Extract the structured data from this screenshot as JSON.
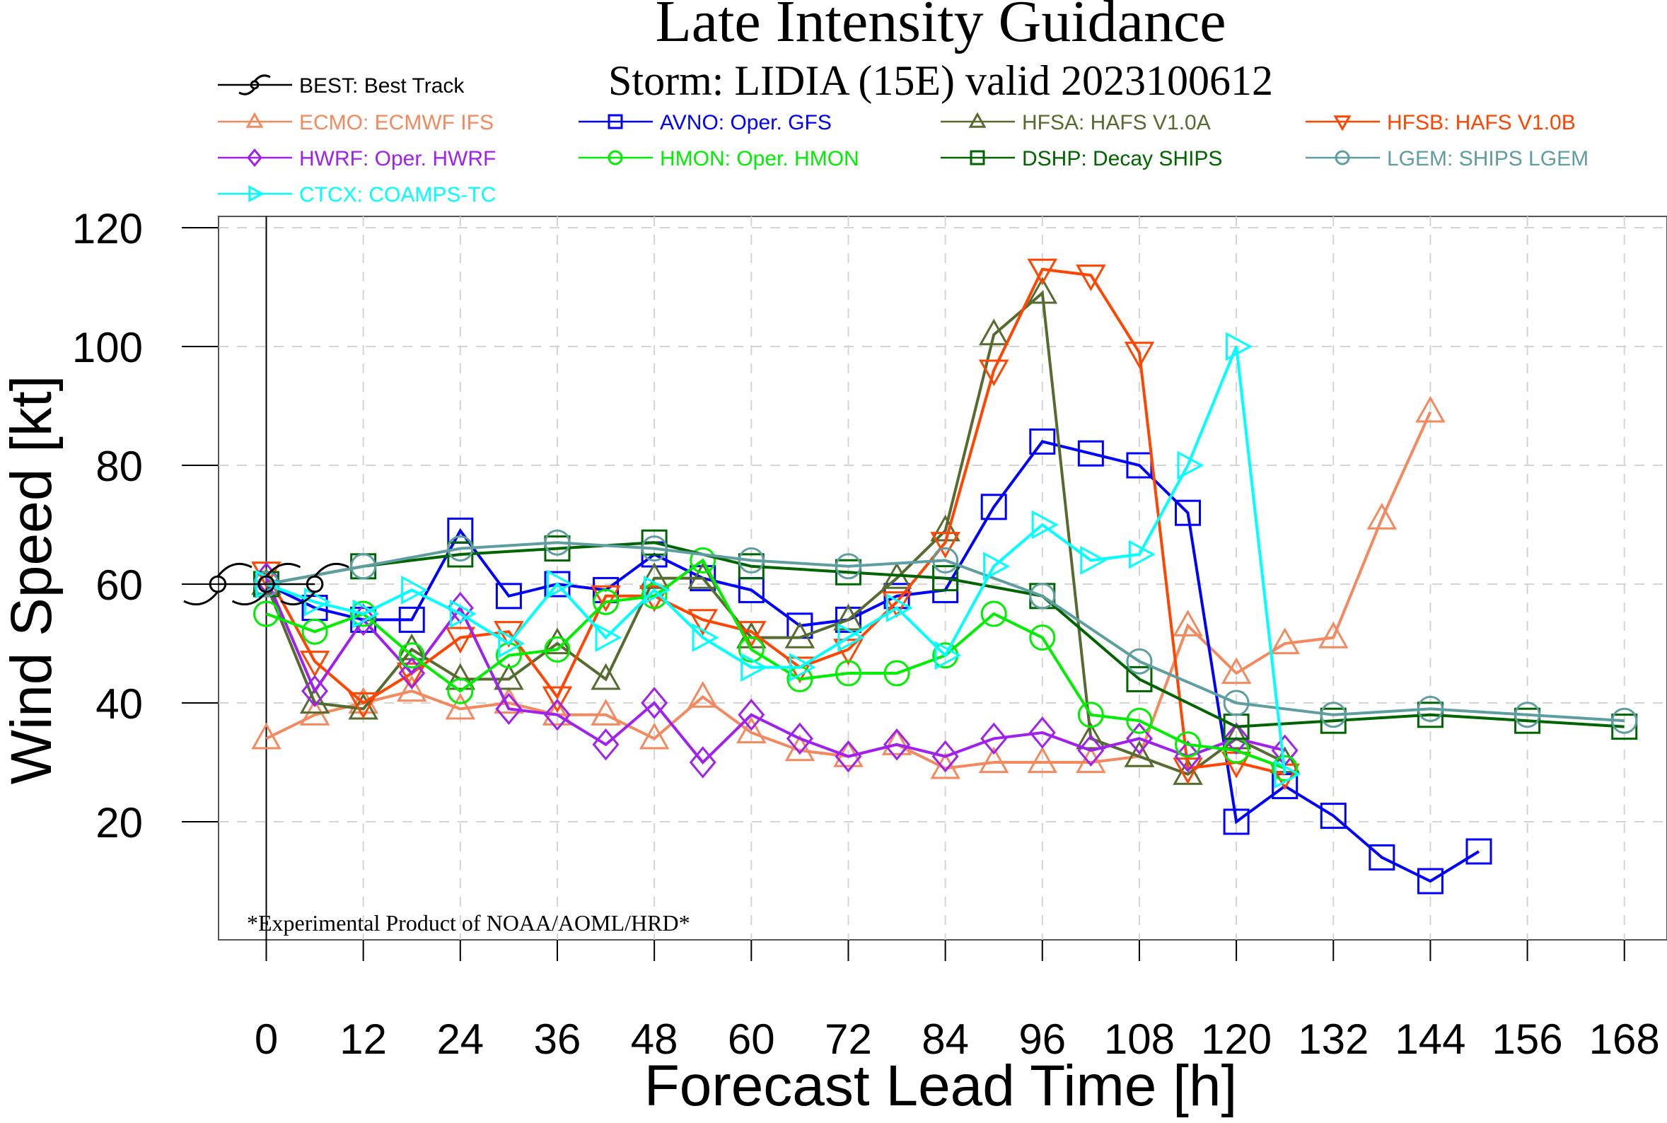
{
  "chart_data": {
    "type": "line",
    "title": "Late Intensity Guidance",
    "subtitle": "Storm: LIDIA (15E) valid 2023100612",
    "xlabel": "Forecast Lead Time [h]",
    "ylabel": "Wind Speed [kt]",
    "footnote": "*Experimental Product of NOAA/AOML/HRD*",
    "xlim": [
      -6,
      174
    ],
    "ylim": [
      0,
      122
    ],
    "x_ticks": [
      "0",
      "12",
      "24",
      "36",
      "48",
      "60",
      "72",
      "84",
      "96",
      "108",
      "120",
      "132",
      "144",
      "156",
      "168"
    ],
    "y_ticks": [
      "20",
      "40",
      "60",
      "80",
      "100",
      "120"
    ],
    "grid": true,
    "legend_position": "top",
    "vertical_reference_line_x": 0,
    "series": [
      {
        "name": "BEST: Best Track",
        "color": "#000000",
        "marker": "hurricane-symbol",
        "x": [
          -6,
          0,
          6
        ],
        "y": [
          60,
          60,
          60
        ]
      },
      {
        "name": "ECMO: ECMWF IFS",
        "color": "#f4895f",
        "marker": "triangle-up",
        "x": [
          0,
          6,
          12,
          18,
          24,
          30,
          36,
          42,
          48,
          54,
          60,
          66,
          72,
          78,
          84,
          90,
          96,
          102,
          108,
          114,
          120,
          126,
          132,
          138,
          144
        ],
        "y": [
          34,
          38,
          40,
          42,
          39,
          40,
          38,
          38,
          34,
          41,
          35,
          32,
          31,
          33,
          29,
          30,
          30,
          30,
          31,
          53,
          45,
          50,
          51,
          71,
          89
        ]
      },
      {
        "name": "AVNO: Oper. GFS",
        "color": "#0000ff",
        "marker": "square",
        "x": [
          0,
          6,
          12,
          18,
          24,
          30,
          36,
          42,
          48,
          54,
          60,
          66,
          72,
          78,
          84,
          90,
          96,
          102,
          108,
          114,
          120,
          126,
          132,
          138,
          144,
          150
        ],
        "y": [
          60,
          56,
          54,
          54,
          69,
          58,
          60,
          59,
          65,
          61,
          59,
          53,
          54,
          58,
          59,
          73,
          84,
          82,
          80,
          72,
          20,
          26,
          21,
          14,
          10,
          15
        ]
      },
      {
        "name": "HFSA: HAFS V1.0A",
        "color": "#556b2f",
        "marker": "triangle-up",
        "x": [
          0,
          6,
          12,
          18,
          24,
          30,
          36,
          42,
          48,
          54,
          60,
          66,
          72,
          78,
          84,
          90,
          96,
          102,
          108,
          114,
          120,
          126
        ],
        "y": [
          60,
          40,
          39,
          49,
          44,
          44,
          50,
          44,
          61,
          61,
          51,
          51,
          54,
          61,
          69,
          102,
          109,
          34,
          31,
          28,
          34,
          30
        ]
      },
      {
        "name": "HFSB: HAFS V1.0B",
        "color": "#ff4500",
        "marker": "triangle-down",
        "x": [
          0,
          6,
          12,
          18,
          24,
          30,
          36,
          42,
          48,
          54,
          60,
          66,
          72,
          78,
          84,
          90,
          96,
          102,
          108,
          114,
          120,
          126
        ],
        "y": [
          62,
          47,
          40,
          45,
          51,
          52,
          41,
          58,
          58,
          54,
          52,
          46,
          49,
          57,
          67,
          96,
          113,
          112,
          99,
          29,
          30,
          28
        ]
      },
      {
        "name": "HWRF: Oper. HWRF",
        "color": "#a020f0",
        "marker": "diamond",
        "x": [
          0,
          6,
          12,
          18,
          24,
          30,
          36,
          42,
          48,
          54,
          60,
          66,
          72,
          78,
          84,
          90,
          96,
          102,
          108,
          114,
          120,
          126
        ],
        "y": [
          61,
          42,
          54,
          45,
          56,
          39,
          38,
          33,
          40,
          30,
          38,
          34,
          31,
          33,
          31,
          34,
          35,
          32,
          34,
          31,
          34,
          32
        ]
      },
      {
        "name": "HMON: Oper. HMON",
        "color": "#00ee00",
        "marker": "circle",
        "x": [
          0,
          6,
          12,
          18,
          24,
          30,
          36,
          42,
          48,
          54,
          60,
          66,
          72,
          78,
          84,
          90,
          96,
          102,
          108,
          114,
          120,
          126
        ],
        "y": [
          55,
          52,
          55,
          48,
          42,
          48,
          49,
          57,
          58,
          64,
          49,
          44,
          45,
          45,
          48,
          55,
          51,
          38,
          37,
          33,
          32,
          29
        ]
      },
      {
        "name": "DSHP: Decay SHIPS",
        "color": "#006400",
        "marker": "square",
        "x": [
          0,
          12,
          24,
          36,
          48,
          60,
          72,
          84,
          96,
          108,
          120,
          132,
          144,
          156,
          168
        ],
        "y": [
          60,
          63,
          65,
          66,
          67,
          63,
          62,
          61,
          58,
          44,
          36,
          37,
          38,
          37,
          36
        ]
      },
      {
        "name": "LGEM: SHIPS LGEM",
        "color": "#5f9ea0",
        "marker": "circle",
        "x": [
          0,
          12,
          24,
          36,
          48,
          60,
          72,
          84,
          96,
          108,
          120,
          132,
          144,
          156,
          168
        ],
        "y": [
          60,
          63,
          66,
          67,
          66,
          64,
          63,
          64,
          58,
          47,
          40,
          38,
          39,
          38,
          37
        ]
      },
      {
        "name": "CTCX: COAMPS-TC",
        "color": "#00ffff",
        "marker": "triangle-right",
        "x": [
          0,
          6,
          12,
          18,
          24,
          30,
          36,
          42,
          48,
          54,
          60,
          66,
          72,
          78,
          84,
          90,
          96,
          102,
          108,
          114,
          120,
          126
        ],
        "y": [
          60,
          57,
          55,
          59,
          55,
          50,
          60,
          51,
          59,
          51,
          46,
          46,
          51,
          56,
          48,
          63,
          70,
          64,
          65,
          80,
          100,
          28
        ]
      }
    ]
  }
}
